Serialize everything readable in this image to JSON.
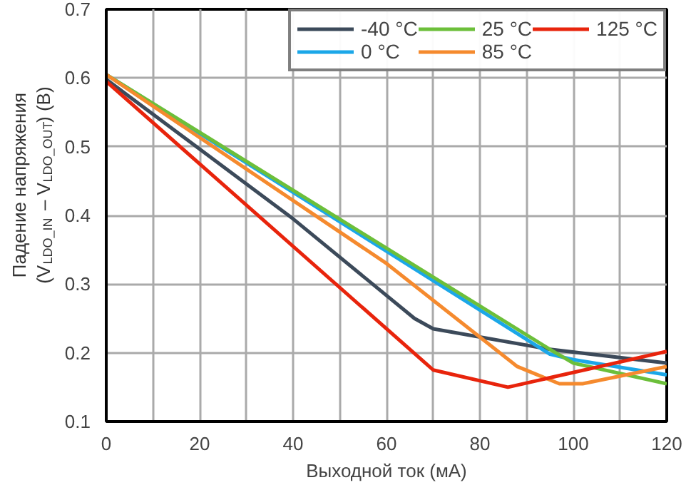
{
  "chart_data": {
    "type": "line",
    "xlabel": "Выходной ток (мА)",
    "ylabel": "Падение напряжения\n(V$_{LDO_IN}$ – V$_{LDO_OUT}$) (В)",
    "xlim": [
      0,
      120
    ],
    "ylim": [
      0.1,
      0.7
    ],
    "xticks": [
      0,
      {
        "value": 10,
        "label": null
      },
      20,
      {
        "value": 30,
        "label": null
      },
      40,
      {
        "value": 50,
        "label": null
      },
      60,
      {
        "value": 70,
        "label": null
      },
      80,
      {
        "value": 90,
        "label": null
      },
      100,
      {
        "value": 110,
        "label": null
      },
      120
    ],
    "yticks": [
      0.1,
      0.2,
      0.3,
      0.4,
      0.5,
      0.6,
      0.7
    ],
    "grid": true,
    "legend": "top right",
    "line_style": "solid",
    "series": [
      {
        "name": "-40 °C",
        "color": "#3c4a5a",
        "x": [
          0,
          40,
          66,
          70,
          95,
          120
        ],
        "values": [
          0.598,
          0.395,
          0.25,
          0.235,
          0.205,
          0.185
        ]
      },
      {
        "name": "0 °C",
        "color": "#1ba7e8",
        "x": [
          0,
          95,
          100,
          120
        ],
        "values": [
          0.605,
          0.198,
          0.19,
          0.168
        ]
      },
      {
        "name": "25 °C",
        "color": "#6cbf3a",
        "x": [
          0,
          95,
          100,
          120
        ],
        "values": [
          0.605,
          0.205,
          0.185,
          0.155
        ]
      },
      {
        "name": "85 °C",
        "color": "#f58a2e",
        "x": [
          0,
          60,
          88,
          97,
          102,
          120
        ],
        "values": [
          0.605,
          0.33,
          0.18,
          0.155,
          0.155,
          0.18
        ]
      },
      {
        "name": "125 °C",
        "color": "#e8240c",
        "x": [
          0,
          70,
          86,
          120
        ],
        "values": [
          0.595,
          0.175,
          0.15,
          0.202
        ]
      }
    ]
  }
}
